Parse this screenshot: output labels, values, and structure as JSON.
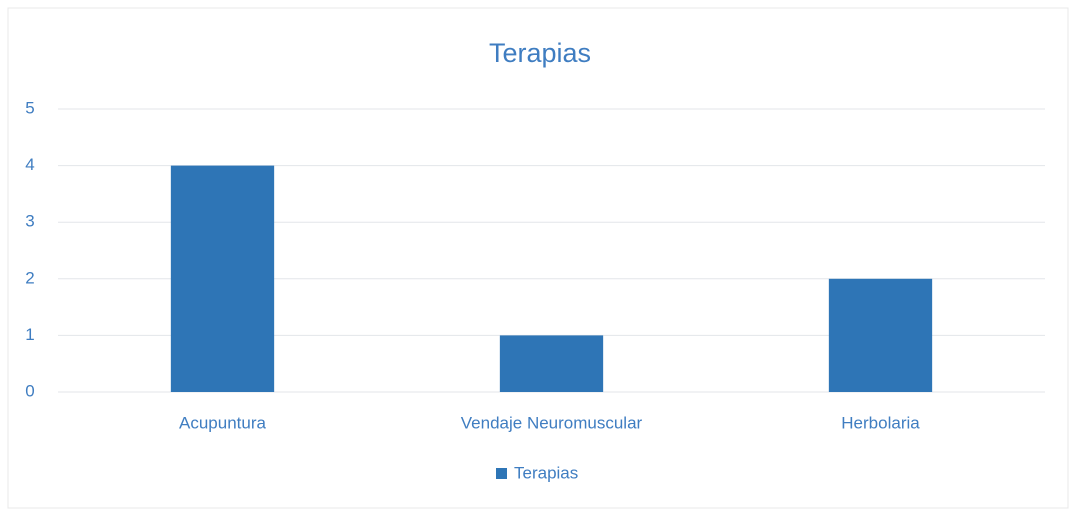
{
  "chart_data": {
    "type": "bar",
    "title": "Terapias",
    "categories": [
      "Acupuntura",
      "Vendaje Neuromuscular",
      "Herbolaria"
    ],
    "series": [
      {
        "name": "Terapias",
        "color": "#2e75b6",
        "values": [
          4,
          1,
          2
        ]
      }
    ],
    "ylim": [
      0,
      5
    ],
    "yticks": [
      0,
      1,
      2,
      3,
      4,
      5
    ],
    "grid": true,
    "legend": "bottom"
  }
}
